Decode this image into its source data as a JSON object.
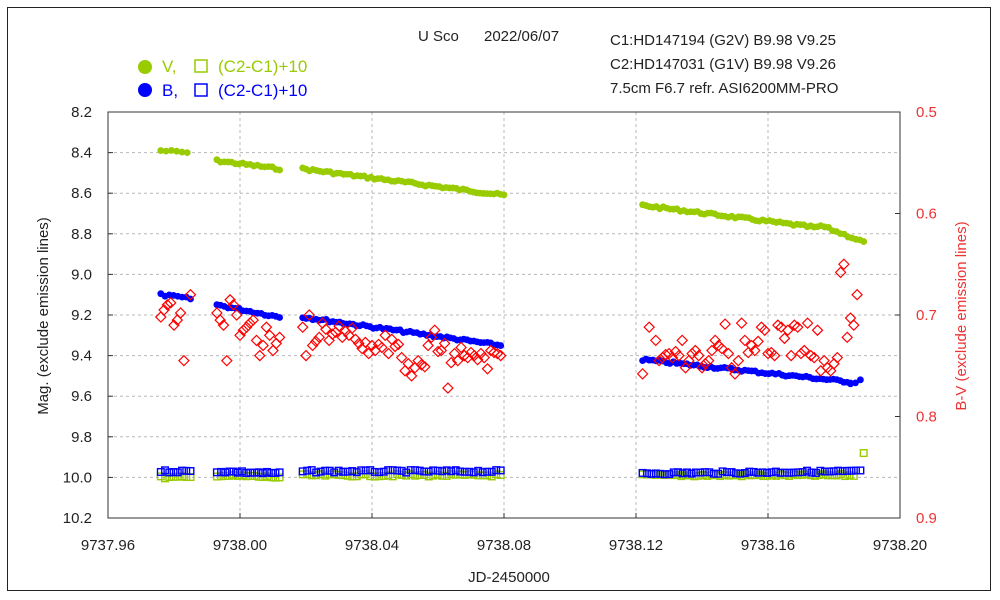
{
  "header": {
    "object": "U Sco",
    "date": "2022/06/07",
    "comp1": "C1:HD147194 (G2V)  B9.98  V9.25",
    "comp2": "C2:HD147031 (G1V)  B9.98  V9.26",
    "setup": "7.5cm F6.7  refr.  ASI6200MM-PRO"
  },
  "legend": {
    "v_label": "V,",
    "v_check": "(C2-C1)+10",
    "b_label": "B,",
    "b_check": "(C2-C1)+10"
  },
  "colors": {
    "v": "#99cc00",
    "b": "#0000ff",
    "bv": "#ff0000"
  },
  "chart_data": {
    "type": "scatter",
    "title": "U Sco 2022/06/07",
    "xlabel": "JD-2450000",
    "ylabel": "Mag. (exclude emission lines)",
    "y2label": "B-V (exclude emission lines)",
    "xlim": [
      9737.96,
      9738.2
    ],
    "ylim": [
      10.2,
      8.2
    ],
    "y2lim": [
      0.9,
      0.5
    ],
    "x_ticks": [
      "9737.96",
      "9738.00",
      "9738.04",
      "9738.08",
      "9738.12",
      "9738.16",
      "9738.20"
    ],
    "y_ticks": [
      "8.2",
      "8.4",
      "8.6",
      "8.8",
      "9.0",
      "9.2",
      "9.4",
      "9.6",
      "9.8",
      "10.0",
      "10.2"
    ],
    "y2_ticks": [
      "0.5",
      "0.6",
      "0.7",
      "0.8",
      "0.9"
    ],
    "grid": true,
    "series": [
      {
        "name": "V",
        "axis": "left",
        "marker": "filled-circle",
        "color": "#99cc00",
        "segments": [
          {
            "x0": 9737.976,
            "x1": 9737.984,
            "y0": 8.39,
            "y1": 8.4,
            "n": 6
          },
          {
            "x0": 9737.993,
            "x1": 9738.012,
            "y0": 8.44,
            "y1": 8.48,
            "n": 18
          },
          {
            "x0": 9738.019,
            "x1": 9738.08,
            "y0": 8.48,
            "y1": 8.61,
            "n": 60
          },
          {
            "x0": 9738.122,
            "x1": 9738.175,
            "y0": 8.66,
            "y1": 8.77,
            "n": 52
          },
          {
            "x0": 9738.176,
            "x1": 9738.189,
            "y0": 8.76,
            "y1": 8.84,
            "n": 12
          }
        ]
      },
      {
        "name": "B",
        "axis": "left",
        "marker": "filled-circle",
        "color": "#0000ff",
        "segments": [
          {
            "x0": 9737.976,
            "x1": 9737.985,
            "y0": 9.1,
            "y1": 9.12,
            "n": 8
          },
          {
            "x0": 9737.993,
            "x1": 9738.012,
            "y0": 9.15,
            "y1": 9.21,
            "n": 18
          },
          {
            "x0": 9738.019,
            "x1": 9738.079,
            "y0": 9.21,
            "y1": 9.35,
            "n": 60
          },
          {
            "x0": 9738.122,
            "x1": 9738.185,
            "y0": 9.42,
            "y1": 9.53,
            "n": 62
          },
          {
            "x0": 9738.185,
            "x1": 9738.188,
            "y0": 9.54,
            "y1": 9.52,
            "n": 3
          }
        ]
      },
      {
        "name": "V (C2-C1)+10",
        "axis": "left",
        "marker": "open-square",
        "color": "#99cc00",
        "segments": [
          {
            "x0": 9737.976,
            "x1": 9737.985,
            "y0": 10.0,
            "y1": 10.0,
            "n": 8
          },
          {
            "x0": 9737.993,
            "x1": 9738.012,
            "y0": 9.99,
            "y1": 10.0,
            "n": 16
          },
          {
            "x0": 9738.019,
            "x1": 9738.079,
            "y0": 9.99,
            "y1": 9.99,
            "n": 45
          },
          {
            "x0": 9738.122,
            "x1": 9738.186,
            "y0": 9.99,
            "y1": 9.99,
            "n": 50
          }
        ],
        "points": [
          [
            9738.189,
            9.88
          ]
        ]
      },
      {
        "name": "B (C2-C1)+10",
        "axis": "left",
        "marker": "open-square",
        "color": "#0000ff",
        "segments": [
          {
            "x0": 9737.976,
            "x1": 9737.985,
            "y0": 9.97,
            "y1": 9.97,
            "n": 8
          },
          {
            "x0": 9737.993,
            "x1": 9738.012,
            "y0": 9.97,
            "y1": 9.98,
            "n": 16
          },
          {
            "x0": 9738.019,
            "x1": 9738.079,
            "y0": 9.97,
            "y1": 9.97,
            "n": 45
          },
          {
            "x0": 9738.122,
            "x1": 9738.188,
            "y0": 9.98,
            "y1": 9.97,
            "n": 50
          }
        ]
      },
      {
        "name": "B-V",
        "axis": "right",
        "marker": "open-diamond",
        "color": "#ff0000",
        "points": [
          [
            9737.976,
            0.702
          ],
          [
            9737.977,
            0.695
          ],
          [
            9737.978,
            0.69
          ],
          [
            9737.979,
            0.688
          ],
          [
            9737.98,
            0.71
          ],
          [
            9737.981,
            0.705
          ],
          [
            9737.982,
            0.698
          ],
          [
            9737.983,
            0.745
          ],
          [
            9737.985,
            0.68
          ],
          [
            9737.993,
            0.698
          ],
          [
            9737.994,
            0.705
          ],
          [
            9737.995,
            0.71
          ],
          [
            9737.996,
            0.745
          ],
          [
            9737.997,
            0.685
          ],
          [
            9737.998,
            0.69
          ],
          [
            9737.999,
            0.7
          ],
          [
            9738.0,
            0.72
          ],
          [
            9738.001,
            0.715
          ],
          [
            9738.002,
            0.712
          ],
          [
            9738.003,
            0.708
          ],
          [
            9738.004,
            0.705
          ],
          [
            9738.005,
            0.725
          ],
          [
            9738.006,
            0.74
          ],
          [
            9738.007,
            0.73
          ],
          [
            9738.008,
            0.712
          ],
          [
            9738.009,
            0.72
          ],
          [
            9738.01,
            0.735
          ],
          [
            9738.011,
            0.728
          ],
          [
            9738.012,
            0.722
          ],
          [
            9738.019,
            0.712
          ],
          [
            9738.02,
            0.74
          ],
          [
            9738.021,
            0.7
          ],
          [
            9738.022,
            0.73
          ],
          [
            9738.023,
            0.726
          ],
          [
            9738.024,
            0.722
          ],
          [
            9738.025,
            0.708
          ],
          [
            9738.026,
            0.714
          ],
          [
            9738.027,
            0.725
          ],
          [
            9738.028,
            0.719
          ],
          [
            9738.029,
            0.717
          ],
          [
            9738.03,
            0.711
          ],
          [
            9738.031,
            0.722
          ],
          [
            9738.032,
            0.716
          ],
          [
            9738.033,
            0.72
          ],
          [
            9738.034,
            0.713
          ],
          [
            9738.035,
            0.724
          ],
          [
            9738.036,
            0.728
          ],
          [
            9738.037,
            0.733
          ],
          [
            9738.038,
            0.727
          ],
          [
            9738.039,
            0.738
          ],
          [
            9738.04,
            0.73
          ],
          [
            9738.041,
            0.735
          ],
          [
            9738.042,
            0.729
          ],
          [
            9738.043,
            0.732
          ],
          [
            9738.044,
            0.72
          ],
          [
            9738.045,
            0.738
          ],
          [
            9738.046,
            0.724
          ],
          [
            9738.047,
            0.731
          ],
          [
            9738.048,
            0.729
          ],
          [
            9738.049,
            0.742
          ],
          [
            9738.05,
            0.755
          ],
          [
            9738.051,
            0.748
          ],
          [
            9738.052,
            0.76
          ],
          [
            9738.053,
            0.752
          ],
          [
            9738.054,
            0.745
          ],
          [
            9738.055,
            0.749
          ],
          [
            9738.056,
            0.751
          ],
          [
            9738.057,
            0.73
          ],
          [
            9738.058,
            0.722
          ],
          [
            9738.059,
            0.715
          ],
          [
            9738.06,
            0.736
          ],
          [
            9738.061,
            0.735
          ],
          [
            9738.062,
            0.728
          ],
          [
            9738.063,
            0.772
          ],
          [
            9738.064,
            0.747
          ],
          [
            9738.065,
            0.738
          ],
          [
            9738.066,
            0.745
          ],
          [
            9738.067,
            0.732
          ],
          [
            9738.068,
            0.74
          ],
          [
            9738.069,
            0.742
          ],
          [
            9738.07,
            0.737
          ],
          [
            9738.071,
            0.74
          ],
          [
            9738.072,
            0.744
          ],
          [
            9738.073,
            0.738
          ],
          [
            9738.074,
            0.742
          ],
          [
            9738.075,
            0.753
          ],
          [
            9738.076,
            0.735
          ],
          [
            9738.077,
            0.737
          ],
          [
            9738.078,
            0.738
          ],
          [
            9738.079,
            0.74
          ],
          [
            9738.122,
            0.758
          ],
          [
            9738.124,
            0.712
          ],
          [
            9738.126,
            0.725
          ],
          [
            9738.127,
            0.745
          ],
          [
            9738.128,
            0.742
          ],
          [
            9738.129,
            0.739
          ],
          [
            9738.13,
            0.738
          ],
          [
            9738.131,
            0.742
          ],
          [
            9738.132,
            0.736
          ],
          [
            9738.133,
            0.74
          ],
          [
            9738.134,
            0.725
          ],
          [
            9738.135,
            0.752
          ],
          [
            9738.136,
            0.745
          ],
          [
            9738.137,
            0.738
          ],
          [
            9738.138,
            0.735
          ],
          [
            9738.139,
            0.74
          ],
          [
            9738.14,
            0.752
          ],
          [
            9738.141,
            0.748
          ],
          [
            9738.142,
            0.745
          ],
          [
            9738.143,
            0.735
          ],
          [
            9738.144,
            0.725
          ],
          [
            9738.145,
            0.73
          ],
          [
            9738.146,
            0.733
          ],
          [
            9738.147,
            0.709
          ],
          [
            9738.148,
            0.738
          ],
          [
            9738.149,
            0.752
          ],
          [
            9738.15,
            0.758
          ],
          [
            9738.151,
            0.745
          ],
          [
            9738.152,
            0.708
          ],
          [
            9738.153,
            0.725
          ],
          [
            9738.154,
            0.737
          ],
          [
            9738.155,
            0.73
          ],
          [
            9738.156,
            0.735
          ],
          [
            9738.157,
            0.726
          ],
          [
            9738.158,
            0.712
          ],
          [
            9738.159,
            0.715
          ],
          [
            9738.16,
            0.738
          ],
          [
            9738.161,
            0.737
          ],
          [
            9738.162,
            0.74
          ],
          [
            9738.163,
            0.71
          ],
          [
            9738.164,
            0.712
          ],
          [
            9738.165,
            0.723
          ],
          [
            9738.166,
            0.715
          ],
          [
            9738.167,
            0.74
          ],
          [
            9738.168,
            0.71
          ],
          [
            9738.169,
            0.712
          ],
          [
            9738.17,
            0.738
          ],
          [
            9738.171,
            0.735
          ],
          [
            9738.172,
            0.708
          ],
          [
            9738.173,
            0.74
          ],
          [
            9738.174,
            0.742
          ],
          [
            9738.175,
            0.715
          ],
          [
            9738.176,
            0.755
          ],
          [
            9738.177,
            0.745
          ],
          [
            9738.178,
            0.752
          ],
          [
            9738.179,
            0.755
          ],
          [
            9738.18,
            0.748
          ],
          [
            9738.181,
            0.742
          ],
          [
            9738.182,
            0.658
          ],
          [
            9738.183,
            0.65
          ],
          [
            9738.184,
            0.722
          ],
          [
            9738.185,
            0.703
          ],
          [
            9738.186,
            0.71
          ],
          [
            9738.187,
            0.68
          ]
        ]
      }
    ]
  }
}
